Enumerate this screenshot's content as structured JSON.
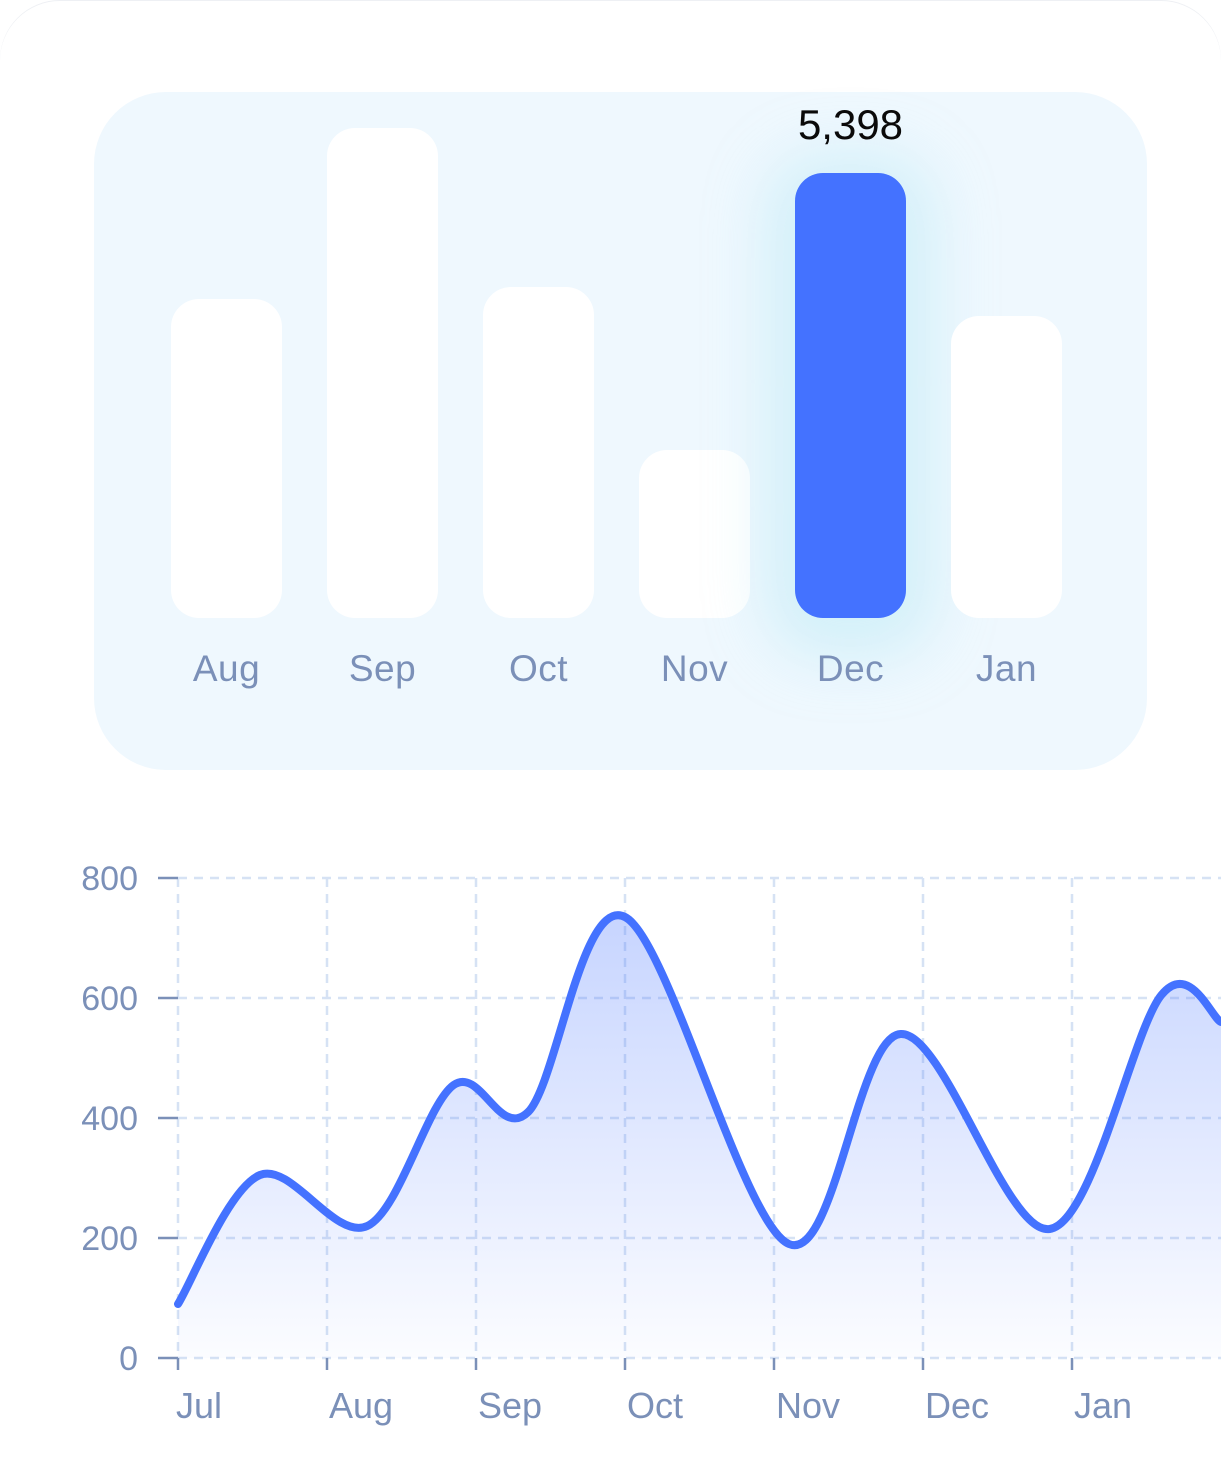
{
  "colors": {
    "accent": "#4472ff",
    "panel": "#eff8fe",
    "bar_idle": "#ffffff",
    "tick_text": "#7b90b8",
    "grid": "#d6e2f4"
  },
  "chart_data": [
    {
      "type": "bar",
      "categories": [
        "Aug",
        "Sep",
        "Oct",
        "Nov",
        "Dec",
        "Jan"
      ],
      "values": [
        3870,
        5940,
        4010,
        2040,
        5398,
        3660
      ],
      "highlighted_index": 4,
      "highlight_label": "5,398",
      "ylim": [
        0,
        8000
      ],
      "grid": false,
      "legend": "none"
    },
    {
      "type": "area",
      "x_ticks": [
        "Jul",
        "Aug",
        "Sep",
        "Oct",
        "Nov",
        "Dec",
        "Jan"
      ],
      "y_ticks": [
        "0",
        "200",
        "400",
        "600",
        "800"
      ],
      "ylim": [
        0,
        800
      ],
      "grid": true,
      "legend": "none",
      "points": [
        {
          "x": 0.0,
          "y": 90
        },
        {
          "x": 0.55,
          "y": 305
        },
        {
          "x": 1.27,
          "y": 220
        },
        {
          "x": 1.85,
          "y": 455
        },
        {
          "x": 2.35,
          "y": 410
        },
        {
          "x": 3.0,
          "y": 735
        },
        {
          "x": 4.1,
          "y": 190
        },
        {
          "x": 4.85,
          "y": 540
        },
        {
          "x": 5.85,
          "y": 215
        },
        {
          "x": 6.6,
          "y": 605
        },
        {
          "x": 7.0,
          "y": 560
        }
      ]
    }
  ]
}
